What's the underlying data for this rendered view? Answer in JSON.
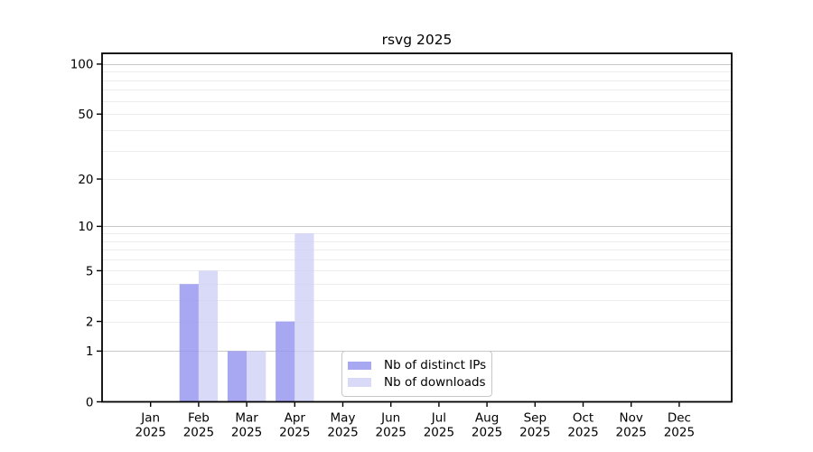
{
  "figure": {
    "background": "#ffffff"
  },
  "chart_data": {
    "type": "bar",
    "title": "rsvg 2025",
    "x_tick_months": [
      "Jan",
      "Feb",
      "Mar",
      "Apr",
      "May",
      "Jun",
      "Jul",
      "Aug",
      "Sep",
      "Oct",
      "Nov",
      "Dec"
    ],
    "x_tick_year": "2025",
    "series": [
      {
        "name": "Nb of distinct IPs",
        "color": "#9898f0",
        "opacity": 0.85,
        "values": [
          0,
          4,
          1,
          2,
          0,
          0,
          0,
          0,
          0,
          0,
          0,
          0
        ]
      },
      {
        "name": "Nb of downloads",
        "color": "#ccccf6",
        "opacity": 0.75,
        "values": [
          0,
          5,
          1,
          9,
          0,
          0,
          0,
          0,
          0,
          0,
          0,
          0
        ]
      }
    ],
    "yscale": "log10(value+1)",
    "yticks": [
      0,
      1,
      2,
      5,
      10,
      20,
      50,
      100
    ],
    "ylim": [
      0,
      116
    ],
    "grid": {
      "major_values": [
        1,
        10,
        100
      ],
      "minor_values": [
        2,
        3,
        4,
        5,
        6,
        7,
        8,
        9,
        20,
        30,
        40,
        50,
        60,
        70,
        80,
        90
      ],
      "major_color": "#c9c9c9",
      "minor_color": "#ededed"
    },
    "legend_position": "lower center",
    "axis_color": "#000000",
    "text_color": "#000000"
  }
}
